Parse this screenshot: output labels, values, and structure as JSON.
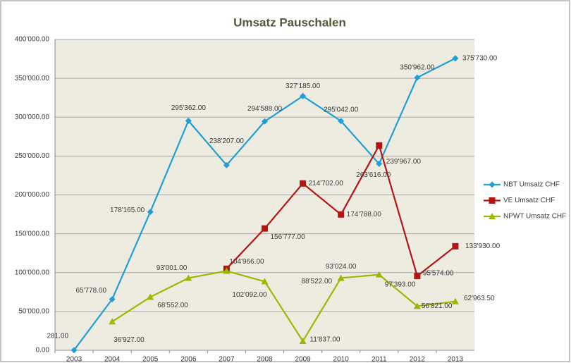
{
  "chart_data": {
    "type": "line",
    "title": "Umsatz Pauschalen",
    "categories": [
      "2003",
      "2004",
      "2005",
      "2006",
      "2007",
      "2008",
      "2009",
      "2010",
      "2011",
      "2012",
      "2013"
    ],
    "series": [
      {
        "name": "NBT Umsatz CHF",
        "color": "#1f9fd8",
        "marker": "diamond",
        "values": [
          281,
          65778,
          178165,
          295362,
          238207,
          294588,
          327185,
          295042,
          239967,
          350962,
          375730
        ],
        "value_labels": [
          "281.00",
          "65'778.00",
          "178'165.00",
          "295'362.00",
          "238'207.00",
          "294'588.00",
          "327'185.00",
          "295'042.00",
          "239'967.00",
          "350'962.00",
          "375'730.00"
        ]
      },
      {
        "name": "VE Umsatz CHF",
        "color": "#b41414",
        "marker": "square",
        "values": [
          null,
          null,
          null,
          null,
          104966,
          156777,
          214702,
          174788,
          263616,
          95574,
          133930
        ],
        "value_labels": [
          null,
          null,
          null,
          null,
          "104'966.00",
          "156'777.00",
          "214'702.00",
          "174'788.00",
          "263'616.00",
          "95'574.00",
          "133'930.00"
        ]
      },
      {
        "name": "NPWT Umsatz CHF",
        "color": "#9cb800",
        "marker": "triangle",
        "values": [
          null,
          36927,
          68552,
          93001,
          102092,
          88522,
          11837,
          93024,
          97393,
          56821,
          62963.5
        ],
        "value_labels": [
          null,
          "36'927.00",
          "68'552.00",
          "93'001.00",
          "102'092.00",
          "88'522.00",
          "11'837.00",
          "93'024.00",
          "97'393.00",
          "56'821.00",
          "62'963.50"
        ]
      }
    ],
    "ylim": [
      0,
      400000
    ],
    "yticks": [
      {
        "value": 0,
        "label": "0.00"
      },
      {
        "value": 50000,
        "label": "50'000.00"
      },
      {
        "value": 100000,
        "label": "100'000.00"
      },
      {
        "value": 150000,
        "label": "150'000.00"
      },
      {
        "value": 200000,
        "label": "200'000.00"
      },
      {
        "value": 250000,
        "label": "250'000.00"
      },
      {
        "value": 300000,
        "label": "300'000.00"
      },
      {
        "value": 350000,
        "label": "350'000.00"
      },
      {
        "value": 400000,
        "label": "400'000.00"
      }
    ],
    "grid": true,
    "legend": "right"
  }
}
